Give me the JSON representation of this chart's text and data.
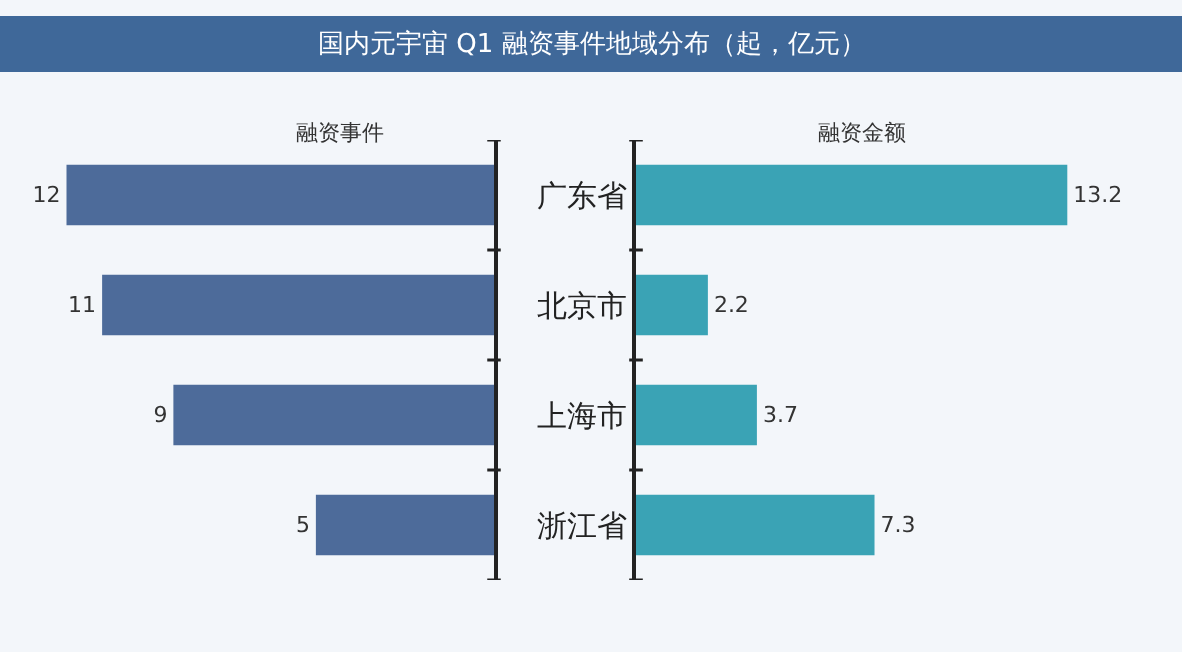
{
  "chart_data": [
    {
      "type": "bar",
      "orientation": "horizontal",
      "title": "国内元宇宙 Q1 融资事件地域分布（起，亿元）",
      "subtitle": "融资事件",
      "categories": [
        "广东省",
        "北京市",
        "上海市",
        "浙江省"
      ],
      "values": [
        12,
        11,
        9,
        5
      ],
      "color": "#4d6b9a",
      "data_labels": true,
      "tick_labels": false
    },
    {
      "type": "bar",
      "orientation": "horizontal",
      "subtitle": "融资金额",
      "categories": [
        "广东省",
        "北京市",
        "上海市",
        "浙江省"
      ],
      "values": [
        13.2,
        2.2,
        3.7,
        7.3
      ],
      "color": "#3aa3b5",
      "data_labels": true,
      "tick_labels": "y"
    }
  ]
}
